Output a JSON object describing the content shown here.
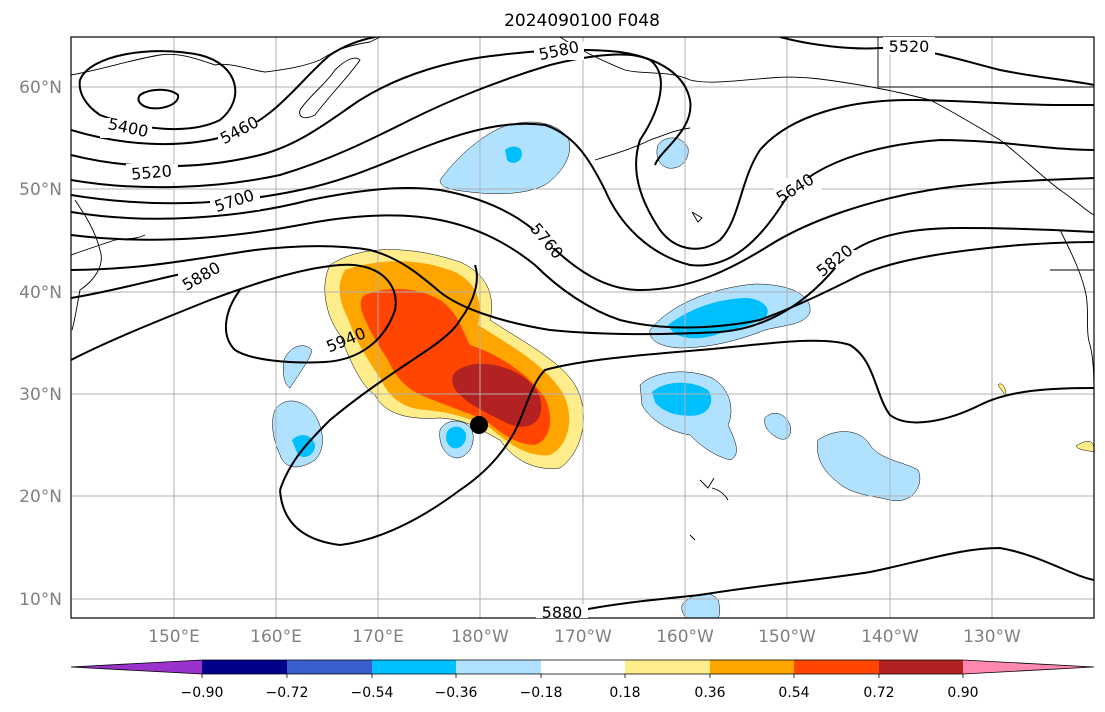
{
  "title": "2024090100 F048",
  "lat_labels": [
    "60°N",
    "50°N",
    "40°N",
    "30°N",
    "20°N",
    "10°N"
  ],
  "lon_labels": [
    "150°E",
    "160°E",
    "170°E",
    "180°W",
    "170°W",
    "160°W",
    "150°W",
    "140°W",
    "130°W"
  ],
  "contour_labels": {
    "c5400": "5400",
    "c5460": "5460",
    "c5520a": "5520",
    "c5520b": "5520",
    "c5580": "5580",
    "c5640": "5640",
    "c5700": "5700",
    "c5760": "5760",
    "c5820": "5820",
    "c5880a": "5880",
    "c5880b": "5880",
    "c5940": "5940"
  },
  "colorbar": {
    "ticks": [
      "−0.90",
      "−0.72",
      "−0.54",
      "−0.36",
      "−0.18",
      "0.18",
      "0.36",
      "0.54",
      "0.72",
      "0.90"
    ],
    "colors": [
      "#9933cc",
      "#00008b",
      "#3a5fcd",
      "#00bfff",
      "#b0e2ff",
      "#ffffff",
      "#ffec8b",
      "#ffa500",
      "#ff4500",
      "#b22222",
      "#ff88b0"
    ]
  }
}
